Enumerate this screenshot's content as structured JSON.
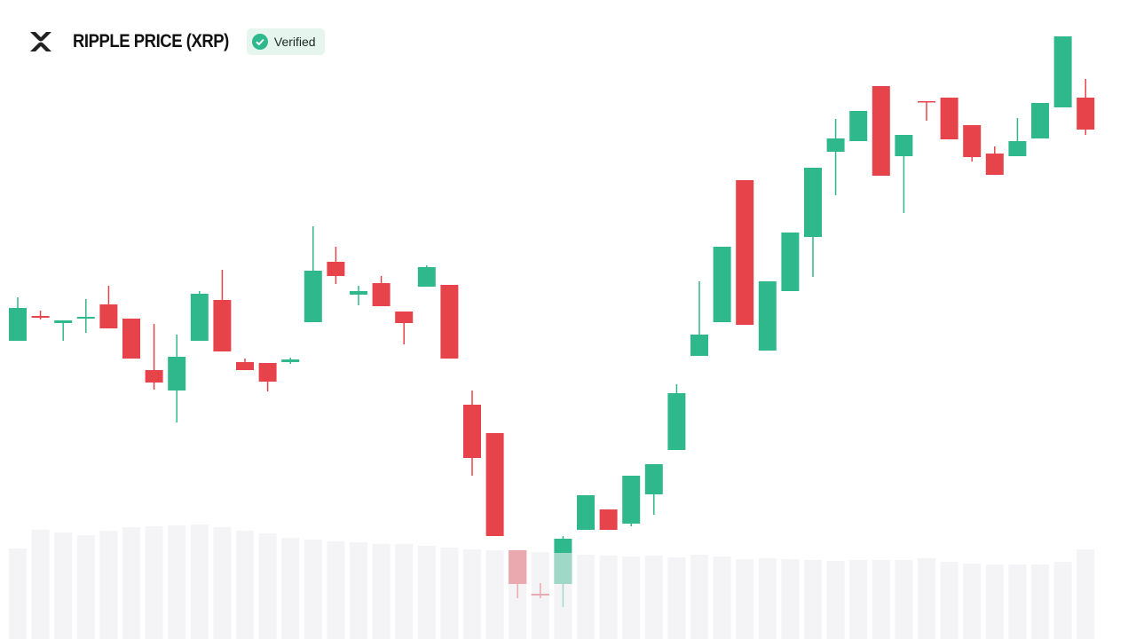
{
  "chart_data": {
    "type": "candlestick",
    "title": "RIPPLE PRICE (XRP)",
    "badge": "Verified",
    "open": [
      336,
      364,
      356,
      361,
      377,
      361,
      303,
      280,
      336,
      382,
      312,
      311,
      312,
      357,
      425,
      388,
      401,
      369,
      397,
      399,
      264,
      232,
      100,
      51,
      62,
      123,
      146,
      130,
      163,
      213,
      319,
      357,
      517,
      325,
      392,
      453,
      549,
      561,
      623,
      544,
      606,
      610,
      579,
      547,
      544,
      564,
      599,
      610
    ],
    "high": [
      385,
      370,
      359,
      383,
      398,
      361,
      355,
      343,
      392,
      416,
      316,
      311,
      317,
      465,
      442,
      398,
      409,
      369,
      421,
      399,
      280,
      232,
      100,
      63,
      116,
      162,
      146,
      184,
      197,
      287,
      403,
      442,
      517,
      403,
      458,
      531,
      586,
      595,
      623,
      568,
      606,
      610,
      579,
      555,
      587,
      604,
      679,
      631
    ],
    "low": [
      336,
      360,
      336,
      345,
      350,
      316,
      281,
      244,
      336,
      324,
      303,
      279,
      310,
      357,
      400,
      376,
      375,
      332,
      397,
      316,
      184,
      116,
      46,
      46,
      36,
      123,
      123,
      127,
      140,
      213,
      319,
      357,
      354,
      325,
      392,
      408,
      500,
      561,
      522,
      480,
      584,
      563,
      538,
      523,
      544,
      564,
      599,
      568
    ],
    "close": [
      373,
      362,
      359,
      363,
      350,
      316,
      289,
      318,
      389,
      324,
      303,
      290,
      315,
      415,
      409,
      392,
      375,
      356,
      419,
      316,
      204,
      116,
      62,
      49,
      113,
      162,
      123,
      184,
      197,
      277,
      343,
      442,
      354,
      403,
      458,
      531,
      564,
      595,
      522,
      568,
      605,
      563,
      543,
      523,
      561,
      604,
      679,
      574
    ],
    "volume": [
      102,
      123,
      120,
      117,
      122,
      126,
      127,
      128,
      129,
      126,
      122,
      119,
      114,
      112,
      110,
      109,
      107,
      107,
      105,
      103,
      101,
      100,
      100,
      98,
      97,
      95,
      94,
      93,
      94,
      92,
      95,
      93,
      90,
      91,
      90,
      89,
      88,
      89,
      89,
      89,
      91,
      87,
      85,
      84,
      84,
      84,
      87,
      101
    ],
    "ylim": [
      0,
      720
    ],
    "y2lim": [
      0,
      720
    ],
    "up_color": "#2eb88b",
    "down_color": "#e6444a",
    "volume_color": "#ececf1"
  }
}
